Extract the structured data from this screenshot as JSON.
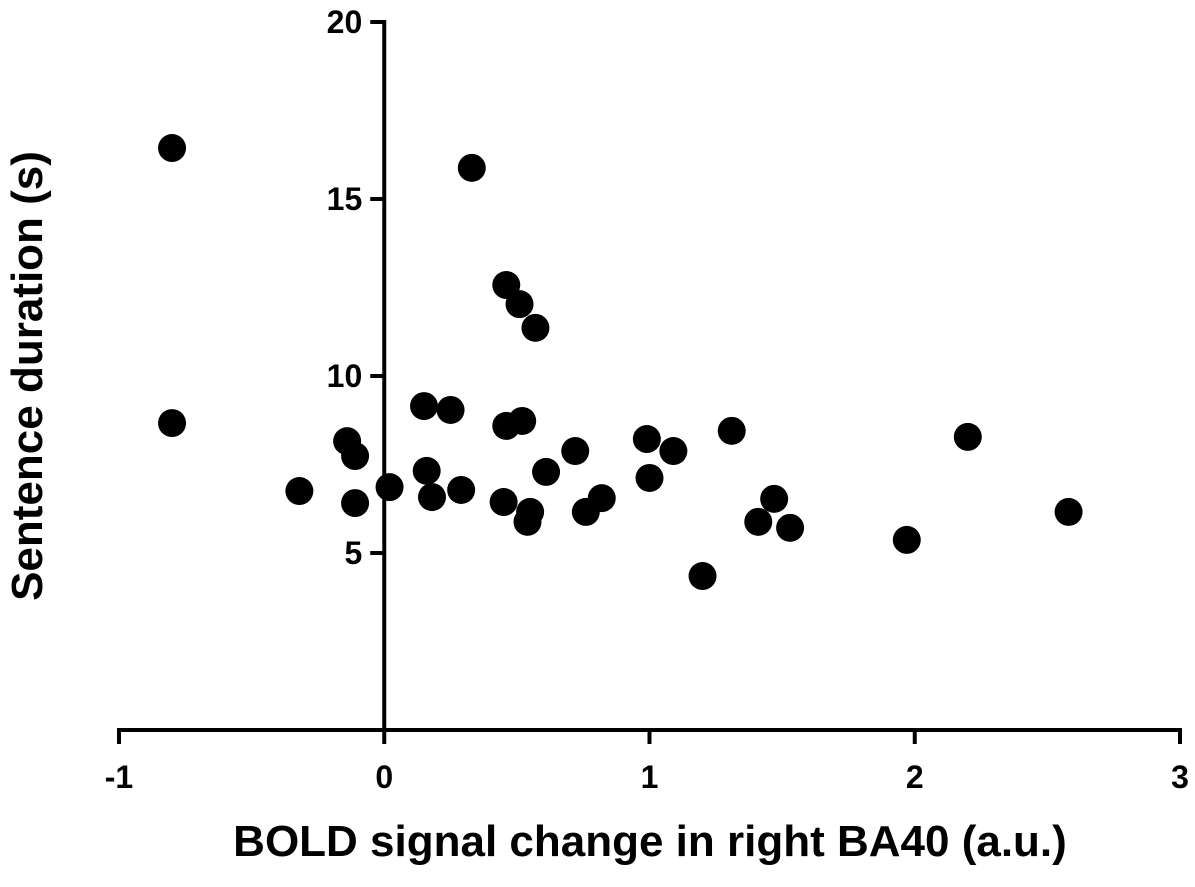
{
  "chart_data": {
    "type": "scatter",
    "xlabel": "BOLD signal change in right BA40 (a.u.)",
    "ylabel": "Sentence duration (s)",
    "xlim": [
      -1,
      3
    ],
    "xticks": [
      -1,
      0,
      1,
      2,
      3
    ],
    "ylim": [
      0,
      20
    ],
    "yticks": [
      5,
      10,
      15,
      20
    ],
    "color": "#000000",
    "x": [
      -0.8,
      -0.8,
      0.33,
      0.46,
      0.51,
      0.57,
      0.15,
      0.25,
      0.46,
      0.52,
      -0.14,
      -0.11,
      0.72,
      0.99,
      1.09,
      1.31,
      2.2,
      0.16,
      0.61,
      1.0,
      -0.32,
      0.02,
      -0.11,
      0.18,
      0.29,
      0.45,
      0.55,
      0.54,
      0.76,
      0.82,
      1.47,
      1.41,
      1.53,
      1.2,
      1.97,
      2.58
    ],
    "values": [
      16.44,
      8.67,
      15.88,
      12.57,
      12.03,
      11.36,
      9.15,
      9.04,
      8.59,
      8.73,
      8.16,
      7.74,
      7.88,
      8.22,
      7.88,
      8.45,
      8.28,
      7.32,
      7.29,
      7.12,
      6.75,
      6.86,
      6.41,
      6.58,
      6.78,
      6.44,
      6.16,
      5.88,
      6.16,
      6.55,
      6.53,
      5.88,
      5.71,
      4.35,
      5.37,
      6.16
    ]
  }
}
